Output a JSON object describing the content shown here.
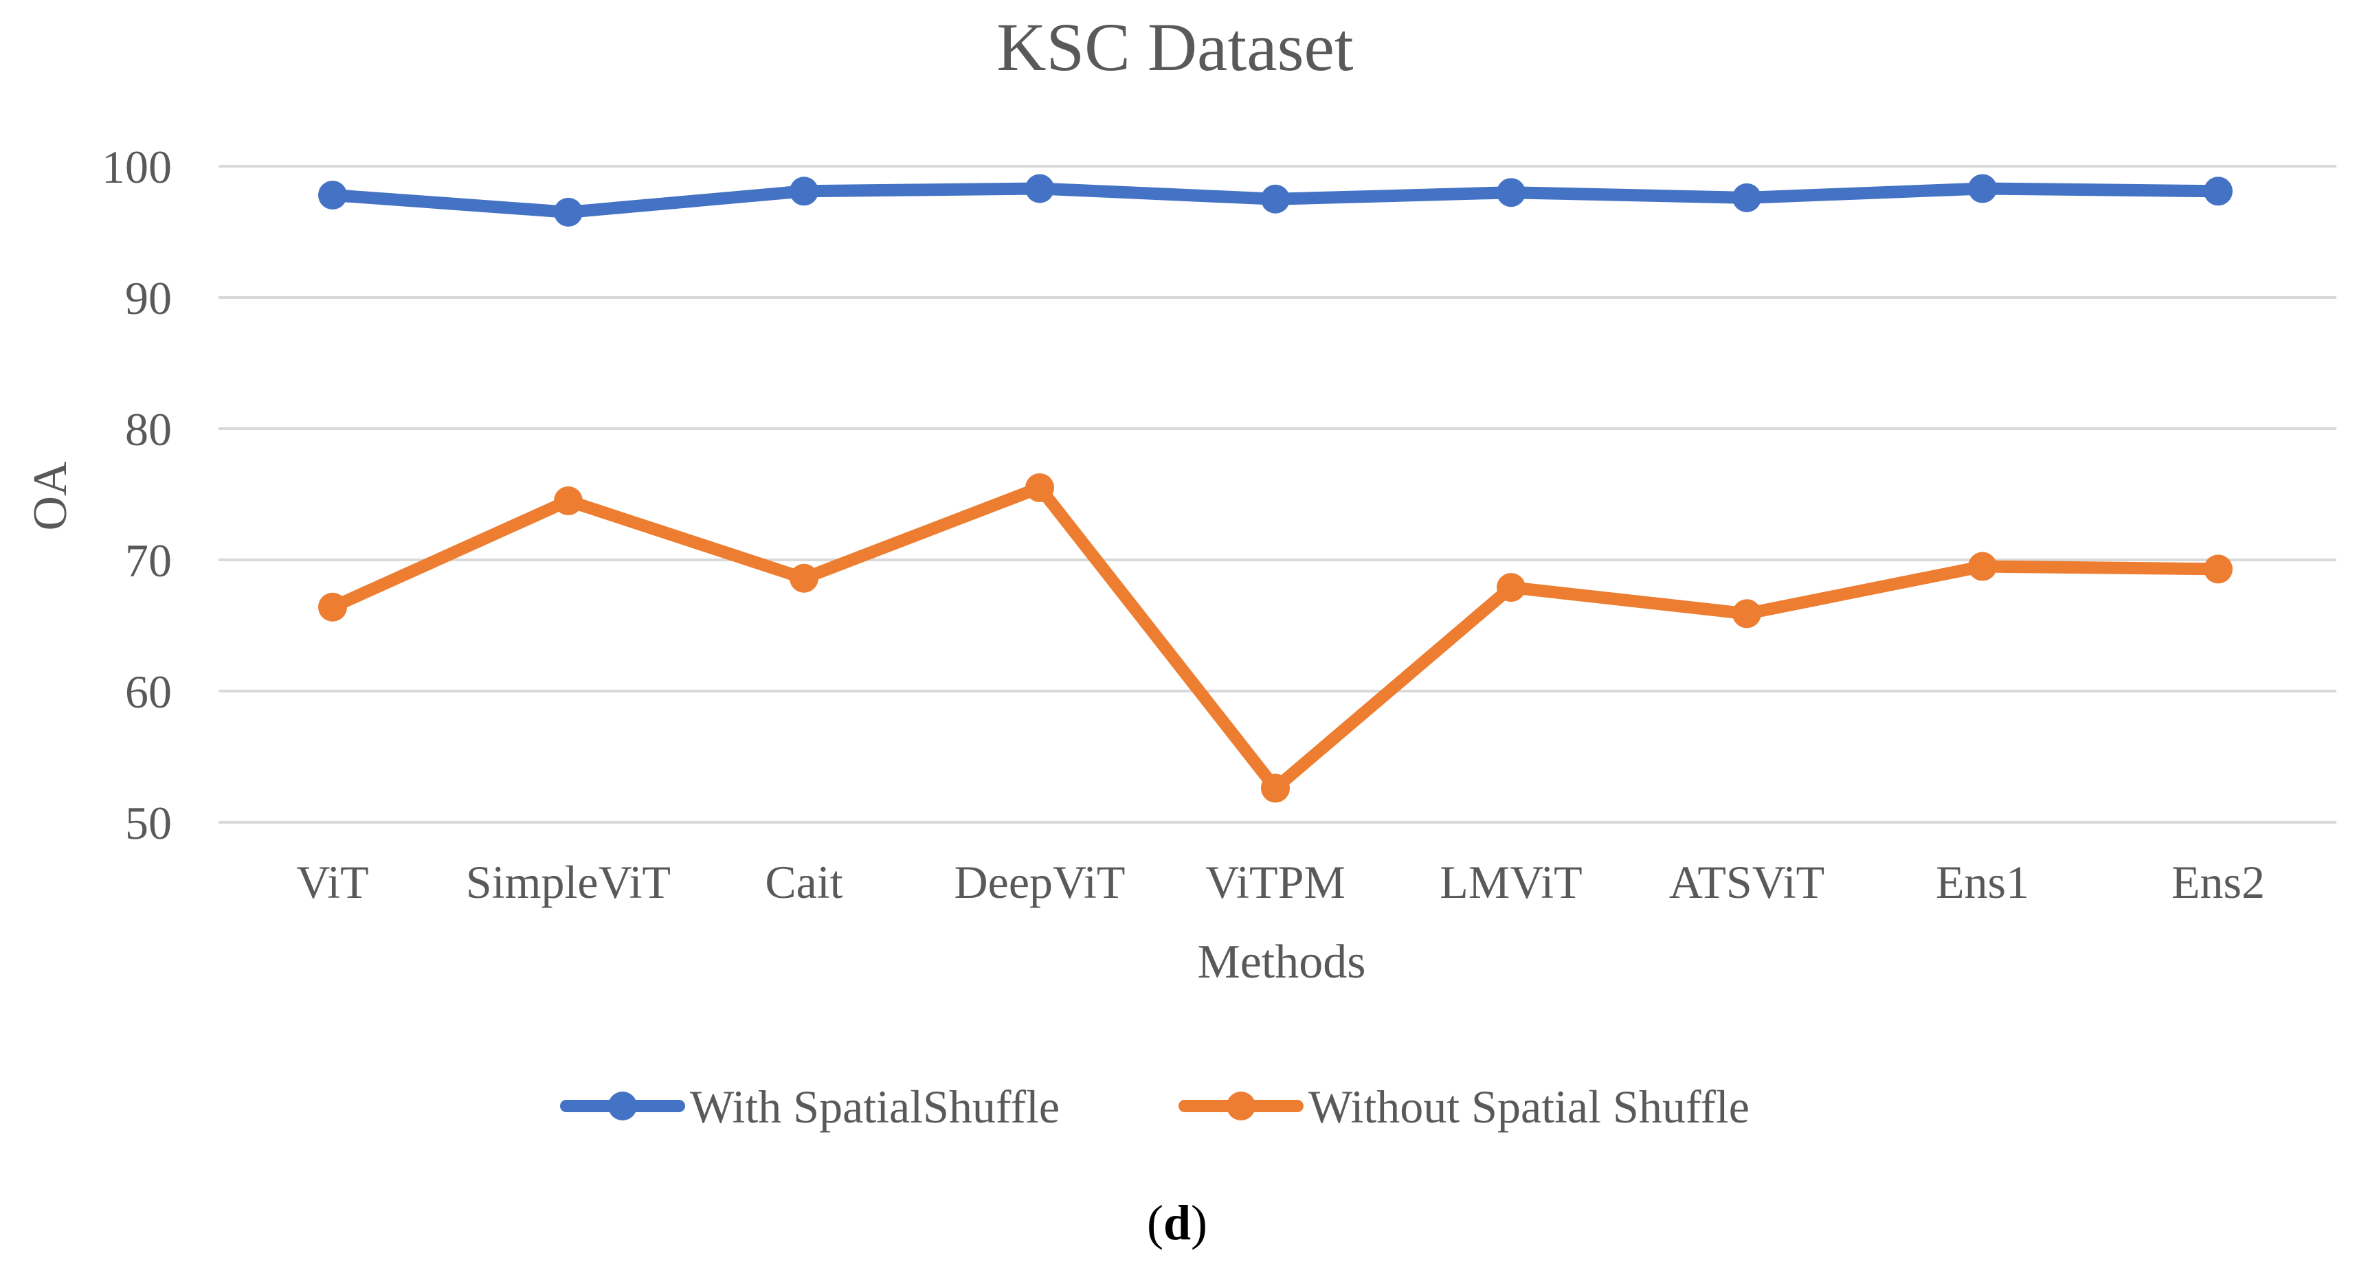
{
  "chart_data": {
    "type": "line",
    "title": "KSC Dataset",
    "xlabel": "Methods",
    "ylabel": "OA",
    "categories": [
      "ViT",
      "SimpleViT",
      "Cait",
      "DeepViT",
      "ViTPM",
      "LMViT",
      "ATSViT",
      "Ens1",
      "Ens2"
    ],
    "ylim": [
      50,
      100
    ],
    "yticks": [
      50,
      60,
      70,
      80,
      90,
      100
    ],
    "grid": true,
    "legend_position": "bottom",
    "series": [
      {
        "name": "With SpatialShuffle",
        "color": "#4472C4",
        "values": [
          97.8,
          96.5,
          98.1,
          98.3,
          97.5,
          98.0,
          97.6,
          98.3,
          98.1
        ]
      },
      {
        "name": "Without Spatial Shuffle",
        "color": "#ED7D31",
        "values": [
          66.4,
          74.5,
          68.6,
          75.5,
          52.6,
          67.9,
          65.9,
          69.5,
          69.3
        ]
      }
    ]
  },
  "caption": {
    "open": "(",
    "letter": "d",
    "close": ")"
  },
  "colors": {
    "grid": "#D9D9D9",
    "text": "#595959",
    "caption": "#000000"
  }
}
